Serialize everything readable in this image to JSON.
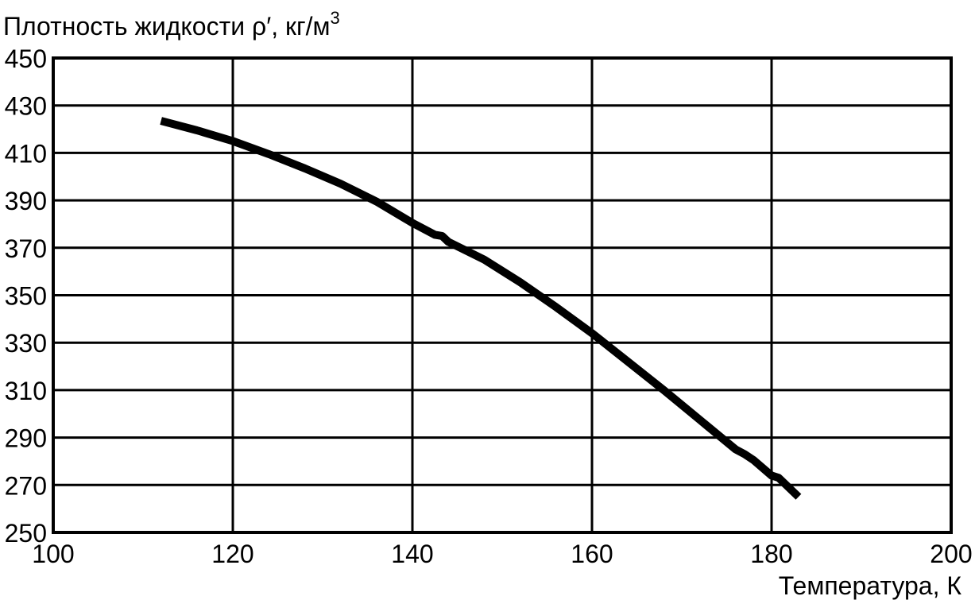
{
  "chart_data": {
    "type": "line",
    "title": "",
    "ylabel": "Плотность жидкости ρ′, кг/м",
    "ylabel_superscript": "3",
    "xlabel": "Температура, К",
    "xlim": [
      100,
      200
    ],
    "ylim": [
      250,
      450
    ],
    "xticks": [
      "100",
      "120",
      "140",
      "160",
      "180",
      "200"
    ],
    "yticks": [
      "450",
      "430",
      "410",
      "390",
      "370",
      "350",
      "330",
      "310",
      "290",
      "270",
      "250"
    ],
    "grid": true,
    "series": [
      {
        "color": "#000000",
        "x": [
          112,
          116,
          120,
          124,
          128,
          132,
          136,
          140,
          142.5,
          143.3,
          144,
          148,
          152,
          156,
          160,
          164,
          168,
          172,
          176,
          177,
          178,
          180,
          180.8,
          183
        ],
        "y": [
          423.5,
          419.5,
          415,
          409.5,
          403.5,
          397,
          389.5,
          380.5,
          375.5,
          375,
          372.5,
          365,
          355.5,
          345,
          334,
          322,
          310,
          297.5,
          285,
          283,
          280.5,
          274,
          273,
          265
        ]
      }
    ]
  }
}
